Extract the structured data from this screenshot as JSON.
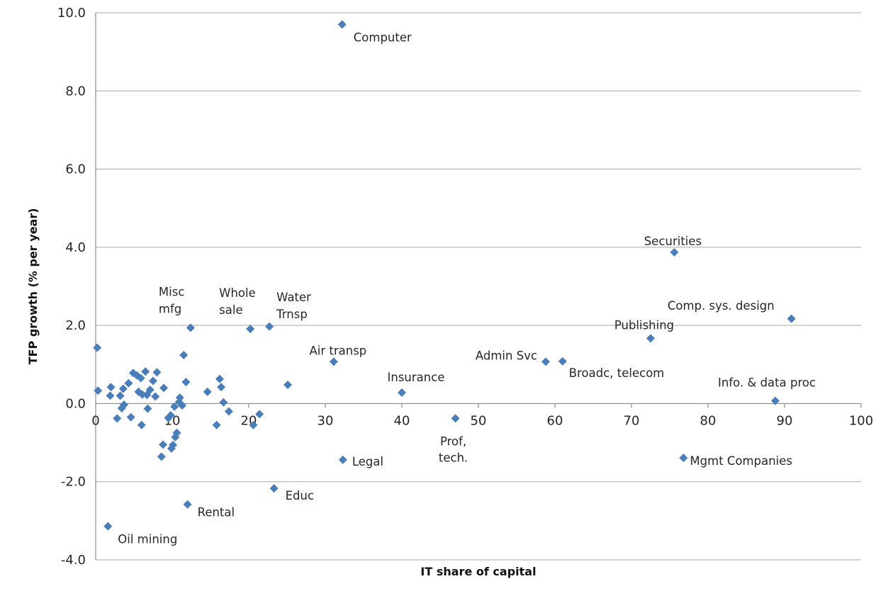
{
  "chart_data": {
    "type": "scatter",
    "xlabel": "IT share of capital",
    "ylabel": "TFP growth (% per year)",
    "xlim": [
      0,
      100
    ],
    "ylim": [
      -4,
      10
    ],
    "x_ticks": [
      "0",
      "10",
      "20",
      "30",
      "40",
      "50",
      "60",
      "70",
      "80",
      "90",
      "100"
    ],
    "y_ticks": [
      "-4.0",
      "-2.0",
      "0.0",
      "2.0",
      "4.0",
      "6.0",
      "8.0",
      "10.0"
    ],
    "grid": "horizontal",
    "marker_color": "#4a7ebb",
    "points": [
      {
        "x": 32.2,
        "y": 9.7,
        "label": "Computer"
      },
      {
        "x": 75.6,
        "y": 3.87,
        "label": "Securities"
      },
      {
        "x": 90.9,
        "y": 2.17,
        "label": "Comp. sys. design"
      },
      {
        "x": 72.5,
        "y": 1.67,
        "label": "Publishing"
      },
      {
        "x": 58.8,
        "y": 1.07,
        "label": "Admin Svc"
      },
      {
        "x": 61.0,
        "y": 1.08,
        "label": "Broadc, telecom"
      },
      {
        "x": 88.8,
        "y": 0.07,
        "label": "Info. & data proc"
      },
      {
        "x": 76.8,
        "y": -1.39,
        "label": "Mgmt Companies"
      },
      {
        "x": 31.1,
        "y": 1.07,
        "label": "Air transp"
      },
      {
        "x": 40.0,
        "y": 0.28,
        "label": "Insurance"
      },
      {
        "x": 47.0,
        "y": -0.38,
        "label": "Prof, tech."
      },
      {
        "x": 32.3,
        "y": -1.44,
        "label": "Legal"
      },
      {
        "x": 23.3,
        "y": -2.17,
        "label": "Educ"
      },
      {
        "x": 12.0,
        "y": -2.58,
        "label": "Rental"
      },
      {
        "x": 1.6,
        "y": -3.14,
        "label": "Oil mining"
      },
      {
        "x": 12.4,
        "y": 1.94,
        "label": "Misc mfg"
      },
      {
        "x": 20.2,
        "y": 1.91,
        "label": "Whole sale"
      },
      {
        "x": 22.7,
        "y": 1.97,
        "label": "Water Trnsp"
      },
      {
        "x": 0.2,
        "y": 1.43
      },
      {
        "x": 0.3,
        "y": 0.33
      },
      {
        "x": 1.9,
        "y": 0.2
      },
      {
        "x": 2.0,
        "y": 0.42
      },
      {
        "x": 2.8,
        "y": -0.38
      },
      {
        "x": 3.2,
        "y": 0.2
      },
      {
        "x": 3.4,
        "y": -0.12
      },
      {
        "x": 3.6,
        "y": 0.38
      },
      {
        "x": 3.7,
        "y": -0.03
      },
      {
        "x": 4.3,
        "y": 0.52
      },
      {
        "x": 4.6,
        "y": -0.35
      },
      {
        "x": 4.9,
        "y": 0.78
      },
      {
        "x": 5.4,
        "y": 0.72
      },
      {
        "x": 5.6,
        "y": 0.3
      },
      {
        "x": 5.9,
        "y": 0.65
      },
      {
        "x": 6.1,
        "y": 0.23
      },
      {
        "x": 6.0,
        "y": -0.55
      },
      {
        "x": 6.5,
        "y": 0.82
      },
      {
        "x": 6.7,
        "y": 0.22
      },
      {
        "x": 6.8,
        "y": -0.13
      },
      {
        "x": 7.1,
        "y": 0.35
      },
      {
        "x": 7.5,
        "y": 0.58
      },
      {
        "x": 7.8,
        "y": 0.18
      },
      {
        "x": 8.0,
        "y": 0.8
      },
      {
        "x": 8.6,
        "y": -1.36
      },
      {
        "x": 8.8,
        "y": -1.05
      },
      {
        "x": 8.9,
        "y": 0.4
      },
      {
        "x": 9.5,
        "y": -0.37
      },
      {
        "x": 9.8,
        "y": -0.3
      },
      {
        "x": 9.9,
        "y": -1.15
      },
      {
        "x": 10.1,
        "y": -1.06
      },
      {
        "x": 10.3,
        "y": -0.08
      },
      {
        "x": 10.4,
        "y": -0.86
      },
      {
        "x": 10.6,
        "y": -0.75
      },
      {
        "x": 10.9,
        "y": 0.04
      },
      {
        "x": 11.0,
        "y": 0.15
      },
      {
        "x": 11.3,
        "y": -0.05
      },
      {
        "x": 11.5,
        "y": 1.24
      },
      {
        "x": 11.8,
        "y": 0.55
      },
      {
        "x": 14.6,
        "y": 0.3
      },
      {
        "x": 15.8,
        "y": -0.55
      },
      {
        "x": 16.2,
        "y": 0.63
      },
      {
        "x": 16.4,
        "y": 0.42
      },
      {
        "x": 16.7,
        "y": 0.03
      },
      {
        "x": 17.4,
        "y": -0.2
      },
      {
        "x": 20.6,
        "y": -0.55
      },
      {
        "x": 21.4,
        "y": -0.27
      },
      {
        "x": 25.1,
        "y": 0.48
      }
    ]
  }
}
